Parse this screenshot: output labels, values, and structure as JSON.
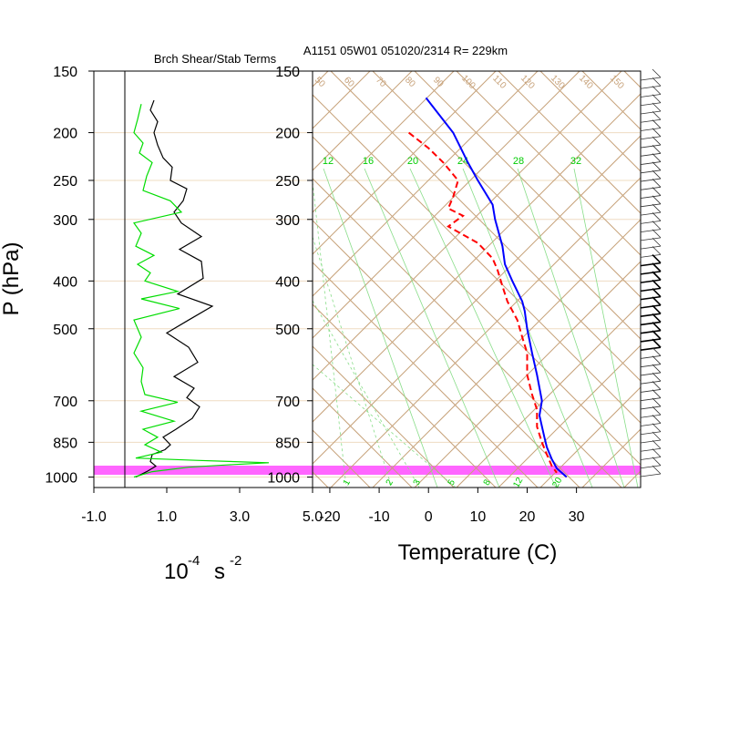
{
  "chart_data": [
    {
      "type": "line",
      "title": "Brch Shear/Stab Terms",
      "ylabel": "P (hPa)",
      "xlabel_base": "10",
      "xlabel_exp": "-4",
      "xlabel_unit": "s",
      "xlabel_unit_exp": "-2",
      "x_ticks": [
        "-1.0",
        "1.0",
        "3.0",
        "5.0"
      ],
      "x_tick_values": [
        -1,
        1,
        3,
        5
      ],
      "xlim": [
        -1,
        5
      ],
      "y_ticks": [
        "150",
        "200",
        "250",
        "300",
        "400",
        "500",
        "700",
        "850",
        "1000"
      ],
      "y_tick_values": [
        150,
        200,
        250,
        300,
        400,
        500,
        700,
        850,
        1000
      ],
      "ylim": [
        150,
        1050
      ],
      "y_scale": "log",
      "series": [
        {
          "color": "#000000",
          "points": [
            [
              0.15,
              1000
            ],
            [
              0.45,
              975
            ],
            [
              0.7,
              950
            ],
            [
              0.55,
              930
            ],
            [
              0.6,
              900
            ],
            [
              0.95,
              880
            ],
            [
              1.1,
              860
            ],
            [
              0.9,
              830
            ],
            [
              1.25,
              800
            ],
            [
              1.7,
              760
            ],
            [
              1.9,
              720
            ],
            [
              1.55,
              690
            ],
            [
              1.75,
              660
            ],
            [
              1.2,
              625
            ],
            [
              1.85,
              585
            ],
            [
              1.6,
              545
            ],
            [
              1.0,
              510
            ],
            [
              1.6,
              480
            ],
            [
              2.25,
              450
            ],
            [
              1.3,
              425
            ],
            [
              2.0,
              395
            ],
            [
              1.95,
              365
            ],
            [
              1.35,
              345
            ],
            [
              1.95,
              325
            ],
            [
              1.4,
              305
            ],
            [
              1.2,
              290
            ],
            [
              1.45,
              275
            ],
            [
              1.55,
              260
            ],
            [
              1.1,
              250
            ],
            [
              1.15,
              235
            ],
            [
              0.9,
              225
            ],
            [
              0.75,
              212
            ],
            [
              0.65,
              200
            ],
            [
              0.75,
              190
            ],
            [
              0.55,
              180
            ],
            [
              0.65,
              172
            ]
          ]
        },
        {
          "color": "#00dd00",
          "points": [
            [
              0.1,
              1000
            ],
            [
              0.6,
              975
            ],
            [
              1.6,
              955
            ],
            [
              2.6,
              945
            ],
            [
              3.8,
              935
            ],
            [
              1.8,
              925
            ],
            [
              0.15,
              915
            ],
            [
              0.85,
              890
            ],
            [
              0.4,
              860
            ],
            [
              0.75,
              830
            ],
            [
              0.35,
              800
            ],
            [
              1.2,
              770
            ],
            [
              0.3,
              735
            ],
            [
              1.3,
              705
            ],
            [
              0.4,
              680
            ],
            [
              0.3,
              640
            ],
            [
              0.35,
              600
            ],
            [
              0.1,
              560
            ],
            [
              0.3,
              520
            ],
            [
              0.1,
              480
            ],
            [
              1.35,
              455
            ],
            [
              0.3,
              435
            ],
            [
              1.3,
              420
            ],
            [
              0.4,
              400
            ],
            [
              0.55,
              385
            ],
            [
              0.2,
              370
            ],
            [
              0.65,
              355
            ],
            [
              0.15,
              340
            ],
            [
              0.3,
              320
            ],
            [
              0.1,
              305
            ],
            [
              1.4,
              290
            ],
            [
              1.1,
              275
            ],
            [
              0.35,
              262
            ],
            [
              0.45,
              245
            ],
            [
              0.6,
              230
            ],
            [
              0.25,
              220
            ],
            [
              0.35,
              210
            ],
            [
              0.1,
              200
            ],
            [
              0.2,
              188
            ],
            [
              0.3,
              175
            ]
          ]
        }
      ]
    },
    {
      "type": "line",
      "title": "A1151 05W01 051020/2314 R= 229km",
      "xlabel": "Temperature (C)",
      "x_ticks": [
        "-20",
        "-10",
        "0",
        "10",
        "20",
        "30"
      ],
      "x_tick_values": [
        -20,
        -10,
        0,
        10,
        20,
        30
      ],
      "xlim": [
        -23.5,
        43
      ],
      "y_ticks": [
        "150",
        "200",
        "250",
        "300",
        "400",
        "500",
        "700",
        "850",
        "1000"
      ],
      "y_tick_values": [
        150,
        200,
        250,
        300,
        400,
        500,
        700,
        850,
        1000
      ],
      "ylim": [
        150,
        1050
      ],
      "y_scale": "log",
      "mixing_ratio_labels": [
        "12",
        "16",
        "20",
        "24",
        "28",
        "32"
      ],
      "dry_adiabat_labels": [
        "50",
        "60",
        "70",
        "80",
        "90",
        "100",
        "110",
        "120",
        "130",
        "140",
        "150"
      ],
      "lower_labels": [
        "1",
        "2",
        "3",
        "5",
        "8",
        "12",
        "20"
      ],
      "highlight_band_color": "#ff66ff",
      "series": [
        {
          "color": "#0000ff",
          "style": "solid",
          "points": [
            [
              -0.5,
              170
            ],
            [
              5,
              200
            ],
            [
              8,
              230
            ],
            [
              10,
              250
            ],
            [
              13,
              280
            ],
            [
              13.5,
              300
            ],
            [
              15,
              340
            ],
            [
              15.5,
              370
            ],
            [
              17,
              400
            ],
            [
              19,
              440
            ],
            [
              19.5,
              460
            ],
            [
              20,
              500
            ],
            [
              21,
              560
            ],
            [
              22,
              620
            ],
            [
              23,
              700
            ],
            [
              22.5,
              750
            ],
            [
              23.5,
              830
            ],
            [
              24,
              870
            ],
            [
              25,
              920
            ],
            [
              26,
              960
            ],
            [
              28,
              1000
            ]
          ]
        },
        {
          "color": "#ff0000",
          "style": "dashed",
          "points": [
            [
              -4,
              200
            ],
            [
              0,
              215
            ],
            [
              3,
              230
            ],
            [
              6,
              250
            ],
            [
              5,
              270
            ],
            [
              4,
              285
            ],
            [
              7,
              295
            ],
            [
              4,
              310
            ],
            [
              10,
              335
            ],
            [
              13,
              360
            ],
            [
              14,
              380
            ],
            [
              15,
              410
            ],
            [
              16,
              440
            ],
            [
              18,
              480
            ],
            [
              19,
              520
            ],
            [
              20,
              560
            ],
            [
              20,
              620
            ],
            [
              21,
              680
            ],
            [
              22,
              730
            ],
            [
              22,
              790
            ],
            [
              23,
              850
            ],
            [
              24,
              900
            ],
            [
              25,
              950
            ],
            [
              26,
              980
            ]
          ]
        }
      ],
      "wind_barb_count": 48
    }
  ]
}
